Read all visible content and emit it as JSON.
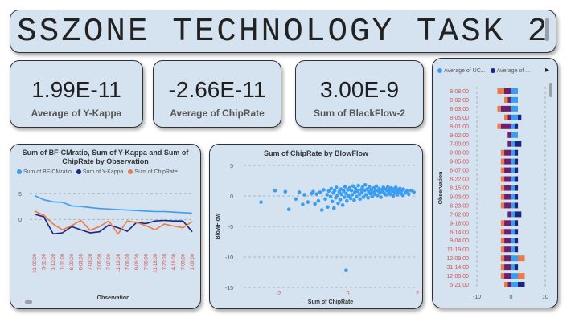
{
  "header": {
    "title": "SSZONE TECHNOLOGY TASK 2"
  },
  "kpis": [
    {
      "value": "1.99E-11",
      "label": "Average of Y-Kappa"
    },
    {
      "value": "-2.66E-11",
      "label": "Average of ChipRate"
    },
    {
      "value": "3.00E-9",
      "label": "Sum of BlackFlow-2"
    }
  ],
  "colors": {
    "light_blue": "#3b9df0",
    "dark_blue": "#1a2580",
    "orange": "#ec7b45",
    "purple": "#6b1f6e",
    "card_bg": "#d5e2f0"
  },
  "line_chart": {
    "title_line1": "Sum of BF-CMratio, Sum of Y-Kappa and Sum of",
    "title_line2": "ChipRate by Observation",
    "legend": [
      "Sum of BF-CMratio",
      "Sum of Y-Kappa",
      "Sum of ChipRate"
    ],
    "xlabel": "Observation",
    "y_ticks": [
      "5",
      "0"
    ]
  },
  "scatter_chart": {
    "title": "Sum of ChipRate by BlowFlow",
    "xlabel": "Sum of ChipRate",
    "ylabel": "BlowFlow",
    "y_ticks": [
      "5",
      "0",
      "-5",
      "-10",
      "-15"
    ],
    "x_ticks": [
      "-2",
      "0",
      "2"
    ]
  },
  "bar_chart": {
    "legend": [
      "Average of UC...",
      "Average of ..."
    ],
    "ylabel": "Observation",
    "x_ticks": [
      "-10",
      "0",
      "10"
    ],
    "nav_arrow": "▸"
  },
  "chart_data": [
    {
      "type": "line",
      "title": "Sum of BF-CMratio, Sum of Y-Kappa and Sum of ChipRate by Observation",
      "xlabel": "Observation",
      "ylabel": "",
      "ylim": [
        -6,
        7
      ],
      "categories": [
        "31-00:00",
        "5-11:00",
        "1-10:00",
        "1-11:00",
        "6-20:00",
        "6-03:00",
        "7-03:00",
        "7-06:00",
        "7-07:00",
        "11-19:00",
        "7-06:00",
        "8-06:00",
        "7-06:00",
        "31-18:00",
        "7-20:00",
        "4-16:00",
        "7-08:00",
        "1-09:00"
      ],
      "series": [
        {
          "name": "Sum of BF-CMratio",
          "values": [
            4.6,
            3.8,
            3.4,
            3.3,
            2.6,
            2.5,
            2.3,
            2.1,
            2.0,
            1.9,
            1.8,
            1.7,
            1.6,
            1.5,
            1.5,
            1.4,
            1.3,
            1.2
          ]
        },
        {
          "name": "Sum of Y-Kappa",
          "values": [
            1.0,
            0.5,
            -2.8,
            -2.6,
            -1.4,
            -2.0,
            -2.6,
            -2.4,
            -1.1,
            -1.6,
            -2.3,
            -0.6,
            -0.8,
            -0.3,
            -0.2,
            -0.3,
            -0.3,
            -2.4
          ]
        },
        {
          "name": "Sum of ChipRate",
          "values": [
            1.6,
            0.8,
            -0.9,
            -2.0,
            -1.2,
            -0.2,
            -2.1,
            -1.4,
            -0.3,
            -2.8,
            -0.3,
            -0.6,
            -1.2,
            -2.0,
            -0.9,
            -1.3,
            -1.6,
            -0.4
          ]
        }
      ]
    },
    {
      "type": "scatter",
      "title": "Sum of ChipRate by BlowFlow",
      "xlabel": "Sum of ChipRate",
      "ylabel": "BlowFlow",
      "xlim": [
        -3,
        2
      ],
      "ylim": [
        -15,
        5
      ],
      "points": [
        [
          -1.15,
          -1.0
        ],
        [
          -1.05,
          0.4
        ],
        [
          -1.0,
          0.7
        ],
        [
          -0.95,
          -1.3
        ],
        [
          -0.9,
          0.3
        ],
        [
          -0.85,
          -0.8
        ],
        [
          -0.8,
          0.6
        ],
        [
          -0.75,
          -2.3
        ],
        [
          -0.7,
          1.0
        ],
        [
          -0.65,
          -0.5
        ],
        [
          -0.6,
          0.2
        ],
        [
          -0.58,
          -1.8
        ],
        [
          -0.55,
          0.8
        ],
        [
          -0.5,
          -0.1
        ],
        [
          -0.48,
          1.2
        ],
        [
          -0.45,
          -0.9
        ],
        [
          -0.42,
          0.5
        ],
        [
          -0.4,
          -2.0
        ],
        [
          -0.38,
          0.9
        ],
        [
          -0.35,
          -0.3
        ],
        [
          -0.33,
          1.4
        ],
        [
          -0.3,
          0.1
        ],
        [
          -0.28,
          -1.2
        ],
        [
          -0.25,
          0.7
        ],
        [
          -0.22,
          -0.6
        ],
        [
          -0.2,
          1.1
        ],
        [
          -0.18,
          0.3
        ],
        [
          -0.15,
          -1.5
        ],
        [
          -0.12,
          0.8
        ],
        [
          -0.1,
          -0.2
        ],
        [
          -0.08,
          1.5
        ],
        [
          -0.05,
          0.4
        ],
        [
          -0.03,
          -0.8
        ],
        [
          0.0,
          1.0
        ],
        [
          0.02,
          0.0
        ],
        [
          0.05,
          1.3
        ],
        [
          0.08,
          -0.4
        ],
        [
          0.1,
          0.9
        ],
        [
          0.12,
          0.2
        ],
        [
          0.15,
          1.6
        ],
        [
          0.18,
          -0.7
        ],
        [
          0.2,
          0.6
        ],
        [
          0.22,
          1.2
        ],
        [
          0.25,
          -0.1
        ],
        [
          0.28,
          0.8
        ],
        [
          0.3,
          1.7
        ],
        [
          0.33,
          0.3
        ],
        [
          0.35,
          -0.5
        ],
        [
          0.38,
          1.0
        ],
        [
          0.4,
          0.5
        ],
        [
          0.42,
          1.4
        ],
        [
          0.45,
          -0.2
        ],
        [
          0.48,
          0.9
        ],
        [
          0.5,
          1.8
        ],
        [
          0.52,
          0.2
        ],
        [
          0.55,
          1.1
        ],
        [
          0.58,
          -0.3
        ],
        [
          0.6,
          0.7
        ],
        [
          0.62,
          1.5
        ],
        [
          0.65,
          0.4
        ],
        [
          0.68,
          1.0
        ],
        [
          0.7,
          -0.1
        ],
        [
          0.72,
          0.6
        ],
        [
          0.75,
          1.3
        ],
        [
          0.78,
          0.3
        ],
        [
          0.8,
          0.9
        ],
        [
          0.82,
          1.6
        ],
        [
          0.85,
          0.1
        ],
        [
          0.88,
          0.8
        ],
        [
          0.9,
          1.2
        ],
        [
          0.92,
          0.5
        ],
        [
          0.95,
          -0.2
        ],
        [
          0.98,
          1.0
        ],
        [
          1.0,
          0.7
        ],
        [
          1.02,
          1.4
        ],
        [
          1.05,
          0.4
        ],
        [
          1.08,
          1.1
        ],
        [
          1.1,
          0.2
        ],
        [
          1.12,
          0.9
        ],
        [
          1.15,
          1.5
        ],
        [
          1.18,
          0.6
        ],
        [
          1.2,
          1.0
        ],
        [
          1.22,
          0.3
        ],
        [
          1.25,
          1.3
        ],
        [
          1.28,
          0.8
        ],
        [
          1.3,
          0.0
        ],
        [
          1.33,
          1.1
        ],
        [
          1.35,
          0.5
        ],
        [
          1.38,
          1.4
        ],
        [
          1.4,
          0.7
        ],
        [
          1.42,
          0.2
        ],
        [
          1.45,
          1.0
        ],
        [
          1.48,
          0.6
        ],
        [
          1.5,
          1.2
        ],
        [
          1.53,
          0.4
        ],
        [
          1.55,
          0.9
        ],
        [
          1.58,
          0.1
        ],
        [
          1.6,
          1.1
        ],
        [
          1.65,
          0.5
        ],
        [
          1.7,
          0.8
        ],
        [
          1.75,
          0.3
        ],
        [
          1.82,
          0.9
        ],
        [
          1.9,
          0.6
        ],
        [
          -2.1,
          0.9
        ],
        [
          -2.5,
          -1.0
        ],
        [
          -1.8,
          0.7
        ],
        [
          -1.7,
          -2.2
        ],
        [
          -1.5,
          -0.5
        ],
        [
          -1.4,
          0.6
        ],
        [
          -1.3,
          -1.4
        ],
        [
          -1.25,
          0.2
        ],
        [
          -0.05,
          -12.2
        ]
      ]
    },
    {
      "type": "bar",
      "orientation": "horizontal-stacked",
      "ylabel": "Observation",
      "xlim": [
        -10,
        10
      ],
      "categories": [
        "8-08:00",
        "8-02:00",
        "8-03:00",
        "8-05:00",
        "8-01:00",
        "9-02:00",
        "7-00:00",
        "9-00:00",
        "9-05:00",
        "8-07:00",
        "8-22:00",
        "8-15:00",
        "9-03:00",
        "8-23:00",
        "7-02:00",
        "9-16:00",
        "8-14:00",
        "9-04:00",
        "11-19:00",
        "12-09:00",
        "31-14:00",
        "12-05:00",
        "5-21:00"
      ],
      "series": [
        {
          "name": "Average of UC...",
          "values": [
            2,
            2,
            2,
            2,
            1,
            2,
            1,
            1,
            1,
            1,
            1,
            1,
            1,
            1,
            1,
            1,
            1,
            1,
            1,
            2,
            1,
            2,
            2
          ]
        },
        {
          "name": "Average of ...",
          "values": [
            0,
            0,
            0,
            1,
            1,
            0,
            2,
            1,
            1,
            1,
            1,
            1,
            1,
            1,
            2,
            1,
            1,
            1,
            1,
            0,
            1,
            0,
            2
          ]
        },
        {
          "name": "negative-a",
          "values": [
            -2,
            -1,
            -3,
            -1,
            -3,
            -1,
            -1,
            -2,
            -2,
            -2,
            -2,
            -2,
            -2,
            -2,
            -1,
            -2,
            -2,
            -2,
            -2,
            -2,
            -2,
            -2,
            -1
          ]
        },
        {
          "name": "negative-b",
          "values": [
            -2,
            -1,
            -1,
            -1,
            -1,
            0,
            0,
            -1,
            -1,
            -1,
            -1,
            -1,
            -1,
            -1,
            0,
            -1,
            -1,
            -1,
            -1,
            -1,
            -1,
            -1,
            -1
          ]
        },
        {
          "name": "positive-orange",
          "values": [
            0,
            0,
            0,
            0,
            0,
            0,
            0,
            0,
            0,
            0,
            0,
            0,
            0,
            0,
            0,
            0,
            0,
            0,
            0,
            2,
            0,
            2,
            0
          ]
        }
      ]
    }
  ]
}
